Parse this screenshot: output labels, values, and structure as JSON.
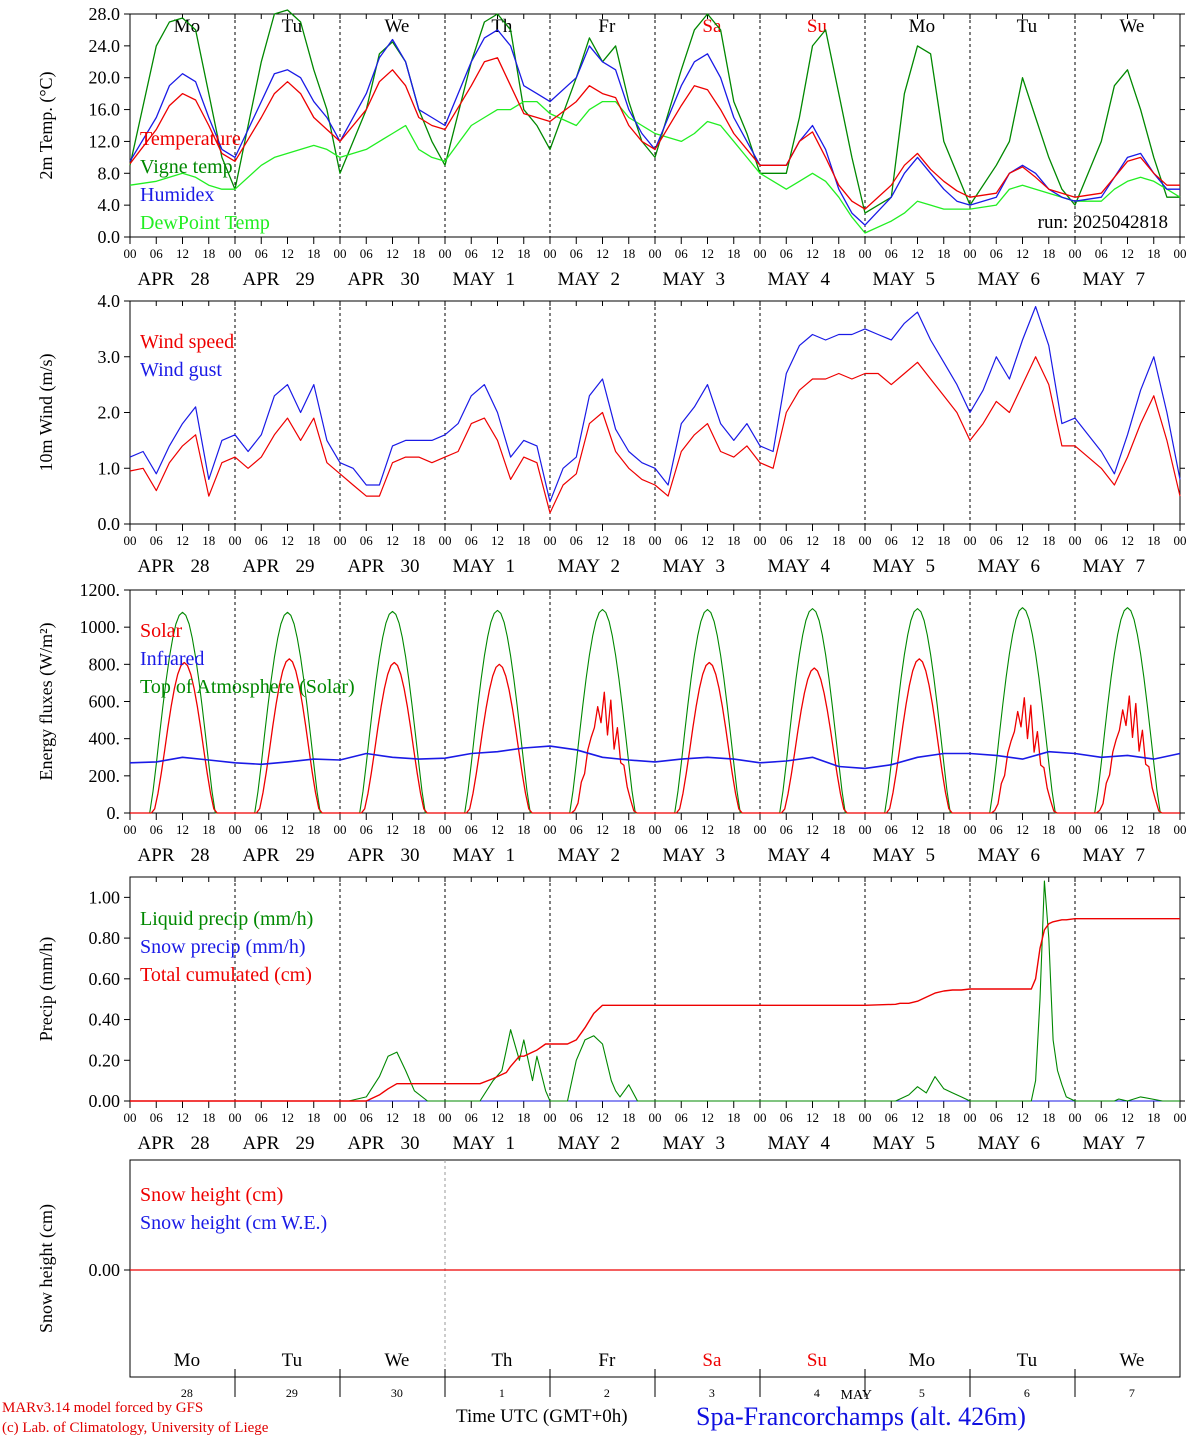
{
  "days_of_week": [
    "Mo",
    "Tu",
    "We",
    "Th",
    "Fr",
    "Sa",
    "Su",
    "Mo",
    "Tu",
    "We"
  ],
  "weekend_day_index": [
    5,
    6
  ],
  "hour_ticks": [
    "00",
    "06",
    "12",
    "18"
  ],
  "date_labels": [
    {
      "month": "APR",
      "day": "28"
    },
    {
      "month": "APR",
      "day": "29"
    },
    {
      "month": "APR",
      "day": "30"
    },
    {
      "month": "MAY",
      "day": "1"
    },
    {
      "month": "MAY",
      "day": "2"
    },
    {
      "month": "MAY",
      "day": "3"
    },
    {
      "month": "MAY",
      "day": "4"
    },
    {
      "month": "MAY",
      "day": "5"
    },
    {
      "month": "MAY",
      "day": "6"
    },
    {
      "month": "MAY",
      "day": "7"
    }
  ],
  "bottom_day_numbers": [
    "28",
    "29",
    "30",
    "1",
    "2",
    "3",
    "4",
    "5",
    "6",
    "7"
  ],
  "bottom_month": "MAY",
  "colors": {
    "red": "#ee0000",
    "green": "#008800",
    "blue": "#1a1ae6",
    "light_green": "#22ee22",
    "black": "#000000",
    "weekend": "#ee0000"
  },
  "footer": {
    "model": "MARv3.14 model forced by GFS",
    "lab": "(c) Lab. of Climatology, University of Liege",
    "time_label": "Time UTC (GMT+0h)",
    "site": "Spa-Francorchamps (alt. 426m)"
  },
  "chart_data": [
    {
      "type": "line",
      "id": "temperature",
      "ylabel": "2m Temp. (°C)",
      "ylim": [
        0,
        28
      ],
      "yticks": [
        "0.0",
        "4.0",
        "8.0",
        "12.0",
        "16.0",
        "20.0",
        "24.0",
        "28.0"
      ],
      "x_hours": [
        0,
        6,
        9,
        12,
        15,
        18,
        21,
        24,
        30,
        33,
        36,
        39,
        42,
        45,
        48,
        54,
        57,
        60,
        63,
        66,
        69,
        72,
        78,
        81,
        84,
        87,
        90,
        93,
        96,
        102,
        105,
        108,
        111,
        114,
        117,
        120,
        126,
        129,
        132,
        135,
        138,
        141,
        144,
        150,
        153,
        156,
        159,
        162,
        165,
        168,
        174,
        177,
        180,
        183,
        186,
        189,
        192,
        198,
        201,
        204,
        207,
        210,
        213,
        216,
        222,
        225,
        228,
        231,
        234,
        237,
        240
      ],
      "run_label": "run: 2025042818",
      "series": [
        {
          "name": "Temperature",
          "color": "red",
          "values": [
            9.2,
            13.5,
            16.5,
            18,
            17.2,
            14,
            10.5,
            9.5,
            15,
            18,
            19.5,
            18,
            15,
            13.5,
            12,
            16,
            19.5,
            21,
            19,
            15,
            14,
            13.5,
            19,
            22,
            22.5,
            19,
            15.5,
            15,
            14.5,
            17,
            19,
            18,
            17.5,
            14,
            12,
            11,
            16.5,
            19,
            18.5,
            16,
            13,
            11,
            9,
            9,
            12,
            13.2,
            10,
            6.5,
            4.5,
            3.5,
            6.5,
            9,
            10.5,
            8.5,
            7,
            5.8,
            5,
            5.5,
            8,
            8.8,
            7.5,
            6,
            5.5,
            5,
            5.5,
            7.5,
            9.5,
            10,
            8,
            6.5,
            6.5
          ]
        },
        {
          "name": "Vigne temp",
          "color": "green",
          "values": [
            9,
            24,
            27,
            27.5,
            26,
            18,
            10,
            6,
            22,
            28,
            28.5,
            27,
            21,
            16,
            8,
            16,
            23,
            24.5,
            22,
            16,
            12,
            9,
            22,
            27,
            28,
            26,
            16,
            14,
            11,
            20,
            25,
            22,
            24,
            17,
            12,
            10,
            21,
            26,
            28,
            26,
            17,
            13,
            8,
            8,
            15,
            24,
            26,
            18,
            10,
            3,
            5,
            18,
            24,
            23,
            12,
            8,
            4,
            9,
            12,
            20,
            15,
            10,
            6,
            4,
            12,
            19,
            21,
            16,
            10,
            5,
            5
          ]
        },
        {
          "name": "Humidex",
          "color": "blue",
          "values": [
            9.5,
            15,
            19,
            20.5,
            19.5,
            15,
            11,
            10,
            17,
            20.5,
            21,
            20,
            17,
            15,
            12,
            18,
            22.5,
            24.8,
            22,
            16,
            15,
            14,
            22,
            25,
            26,
            24,
            19,
            18,
            17,
            20,
            24,
            22,
            21,
            16,
            13,
            11,
            19,
            22,
            23,
            20,
            15,
            12,
            9,
            9,
            12,
            14,
            11,
            6,
            3,
            1.5,
            5,
            8,
            10,
            8,
            6,
            4.5,
            4,
            5,
            8,
            9,
            8,
            6,
            5,
            4.5,
            5,
            7.5,
            10,
            10.5,
            8,
            6,
            6
          ]
        },
        {
          "name": "DewPoint Temp",
          "color": "light_green",
          "values": [
            6.5,
            7,
            7.5,
            8,
            7.5,
            6.5,
            6,
            6,
            9,
            10,
            10.5,
            11,
            11.5,
            11,
            10,
            11,
            12,
            13,
            14,
            11,
            10,
            9.5,
            14,
            15,
            16,
            16,
            17,
            17,
            15.5,
            14,
            16,
            17,
            17,
            15,
            14,
            13,
            12,
            13,
            14.5,
            14,
            12,
            10,
            8,
            6,
            7,
            8,
            7,
            5,
            2.5,
            0.5,
            2,
            3,
            4.5,
            4,
            3.5,
            3.5,
            3.5,
            4,
            6,
            6.5,
            6,
            5.5,
            5,
            4.5,
            4.5,
            6,
            7,
            7.5,
            7,
            6,
            5
          ]
        }
      ]
    },
    {
      "type": "line",
      "id": "wind",
      "ylabel": "10m Wind (m/s)",
      "ylim": [
        0,
        4
      ],
      "yticks": [
        "0.0",
        "1.0",
        "2.0",
        "3.0",
        "4.0"
      ],
      "x_hours": [
        0,
        3,
        6,
        9,
        12,
        15,
        18,
        21,
        24,
        27,
        30,
        33,
        36,
        39,
        42,
        45,
        48,
        51,
        54,
        57,
        60,
        63,
        66,
        69,
        72,
        75,
        78,
        81,
        84,
        87,
        90,
        93,
        96,
        99,
        102,
        105,
        108,
        111,
        114,
        117,
        120,
        123,
        126,
        129,
        132,
        135,
        138,
        141,
        144,
        147,
        150,
        153,
        156,
        159,
        162,
        165,
        168,
        171,
        174,
        177,
        180,
        183,
        186,
        189,
        192,
        195,
        198,
        201,
        204,
        207,
        210,
        213,
        216,
        219,
        222,
        225,
        228,
        231,
        234,
        237,
        240
      ],
      "series": [
        {
          "name": "Wind speed",
          "color": "red",
          "values": [
            0.95,
            1.0,
            0.6,
            1.1,
            1.4,
            1.6,
            0.5,
            1.1,
            1.2,
            1.0,
            1.2,
            1.6,
            1.9,
            1.5,
            1.9,
            1.1,
            0.9,
            0.7,
            0.5,
            0.5,
            1.1,
            1.2,
            1.2,
            1.1,
            1.2,
            1.3,
            1.8,
            1.9,
            1.5,
            0.8,
            1.2,
            1.1,
            0.2,
            0.7,
            0.9,
            1.8,
            2.0,
            1.3,
            1.0,
            0.8,
            0.7,
            0.5,
            1.3,
            1.6,
            1.8,
            1.3,
            1.2,
            1.4,
            1.1,
            1.0,
            2.0,
            2.4,
            2.6,
            2.6,
            2.7,
            2.6,
            2.7,
            2.7,
            2.5,
            2.7,
            2.9,
            2.6,
            2.3,
            2.0,
            1.5,
            1.8,
            2.2,
            2.0,
            2.5,
            3.0,
            2.5,
            1.4,
            1.4,
            1.2,
            1.0,
            0.7,
            1.2,
            1.8,
            2.3,
            1.5,
            0.5
          ]
        },
        {
          "name": "Wind gust",
          "color": "blue",
          "values": [
            1.2,
            1.3,
            0.9,
            1.4,
            1.8,
            2.1,
            0.8,
            1.5,
            1.6,
            1.3,
            1.6,
            2.3,
            2.5,
            2.0,
            2.5,
            1.5,
            1.1,
            1.0,
            0.7,
            0.7,
            1.4,
            1.5,
            1.5,
            1.5,
            1.6,
            1.8,
            2.3,
            2.5,
            2.0,
            1.2,
            1.5,
            1.4,
            0.4,
            1.0,
            1.2,
            2.3,
            2.6,
            1.7,
            1.3,
            1.1,
            1.0,
            0.7,
            1.8,
            2.1,
            2.5,
            1.8,
            1.5,
            1.8,
            1.4,
            1.3,
            2.7,
            3.2,
            3.4,
            3.3,
            3.4,
            3.4,
            3.5,
            3.4,
            3.3,
            3.6,
            3.8,
            3.3,
            2.9,
            2.5,
            2.0,
            2.4,
            3.0,
            2.6,
            3.3,
            3.9,
            3.2,
            1.8,
            1.9,
            1.6,
            1.3,
            0.9,
            1.6,
            2.4,
            3.0,
            2.0,
            0.8
          ]
        }
      ]
    },
    {
      "type": "line",
      "id": "energy",
      "ylabel": "Energy fluxes (W/m²)",
      "ylim": [
        0,
        1200
      ],
      "yticks": [
        "0.",
        "200.",
        "400.",
        "600.",
        "800.",
        "1000.",
        "1200."
      ],
      "daylight": {
        "start_hour": 4.5,
        "end_hour": 19.5,
        "toa_peak": [
          1080,
          1080,
          1085,
          1090,
          1095,
          1095,
          1100,
          1100,
          1105,
          1105
        ],
        "solar_peak": [
          830,
          850,
          830,
          820,
          680,
          830,
          800,
          850,
          650,
          660
        ]
      },
      "series": [
        {
          "name": "Solar",
          "color": "red"
        },
        {
          "name": "Infrared",
          "color": "blue",
          "values": [
            270,
            275,
            300,
            285,
            270,
            262,
            275,
            290,
            285,
            320,
            300,
            290,
            295,
            320,
            330,
            350,
            360,
            340,
            300,
            285,
            275,
            290,
            300,
            290,
            270,
            280,
            300,
            250,
            240,
            260,
            300,
            320,
            320,
            310,
            290,
            330,
            320,
            300,
            310,
            290,
            320
          ]
        },
        {
          "name": "Top of Atmosphere (Solar)",
          "color": "green"
        }
      ]
    },
    {
      "type": "line",
      "id": "precip",
      "ylabel": "Precip (mm/h)",
      "ylim": [
        0,
        1.1
      ],
      "yticks": [
        "0.00",
        "0.20",
        "0.40",
        "0.60",
        "0.80",
        "1.00"
      ],
      "x_hours": [
        0,
        50,
        54,
        57,
        59,
        61,
        63,
        65,
        68,
        72,
        80,
        83,
        85,
        86,
        87,
        89,
        90,
        92,
        93,
        95,
        96,
        100,
        102,
        104,
        106,
        108,
        110,
        111,
        112,
        114,
        116,
        120,
        168,
        175,
        176,
        178,
        180,
        182,
        184,
        186,
        188,
        190,
        192,
        206,
        207,
        208,
        209,
        210,
        211,
        212,
        213,
        214,
        216,
        225,
        226,
        228,
        231,
        236,
        240
      ],
      "series": [
        {
          "name": "Liquid precip (mm/h)",
          "color": "green",
          "values": [
            0,
            0,
            0.02,
            0.12,
            0.22,
            0.24,
            0.15,
            0.05,
            0,
            0,
            0,
            0.1,
            0.15,
            0.25,
            0.35,
            0.2,
            0.3,
            0.1,
            0.22,
            0.05,
            0,
            0,
            0.2,
            0.3,
            0.32,
            0.28,
            0.1,
            0.05,
            0.02,
            0.08,
            0,
            0,
            0,
            0,
            0.01,
            0.03,
            0.07,
            0.04,
            0.12,
            0.06,
            0.04,
            0.02,
            0,
            0,
            0.1,
            0.5,
            1.08,
            0.8,
            0.3,
            0.15,
            0.08,
            0.02,
            0,
            0,
            0.01,
            0,
            0.02,
            0,
            0
          ]
        },
        {
          "name": "Snow precip (mm/h)",
          "color": "blue",
          "values": [
            0,
            0,
            0,
            0,
            0,
            0,
            0,
            0,
            0,
            0,
            0,
            0,
            0,
            0,
            0,
            0,
            0,
            0,
            0,
            0,
            0,
            0,
            0,
            0,
            0,
            0,
            0,
            0,
            0,
            0,
            0,
            0,
            0,
            0,
            0,
            0,
            0,
            0,
            0,
            0,
            0,
            0,
            0,
            0,
            0,
            0,
            0,
            0,
            0,
            0,
            0,
            0,
            0,
            0,
            0,
            0,
            0,
            0,
            0
          ]
        },
        {
          "name": "Total cumulated (cm)",
          "color": "red",
          "values": [
            0,
            0,
            0,
            0.03,
            0.06,
            0.085,
            0.085,
            0.085,
            0.085,
            0.085,
            0.085,
            0.11,
            0.13,
            0.14,
            0.17,
            0.22,
            0.22,
            0.24,
            0.25,
            0.28,
            0.28,
            0.28,
            0.3,
            0.36,
            0.43,
            0.47,
            0.47,
            0.47,
            0.47,
            0.47,
            0.47,
            0.47,
            0.47,
            0.475,
            0.48,
            0.48,
            0.49,
            0.51,
            0.53,
            0.54,
            0.545,
            0.545,
            0.55,
            0.55,
            0.6,
            0.75,
            0.84,
            0.87,
            0.88,
            0.885,
            0.89,
            0.89,
            0.895,
            0.895,
            0.895,
            0.895,
            0.895,
            0.895,
            0.895
          ]
        }
      ]
    },
    {
      "type": "line",
      "id": "snow",
      "ylabel": "Snow height (cm)",
      "ytick": "0.00",
      "series": [
        {
          "name": "Snow height (cm)",
          "color": "red",
          "values": [
            0,
            0
          ]
        },
        {
          "name": "Snow height (cm W.E.)",
          "color": "blue",
          "values": [
            0,
            0
          ]
        }
      ]
    }
  ]
}
